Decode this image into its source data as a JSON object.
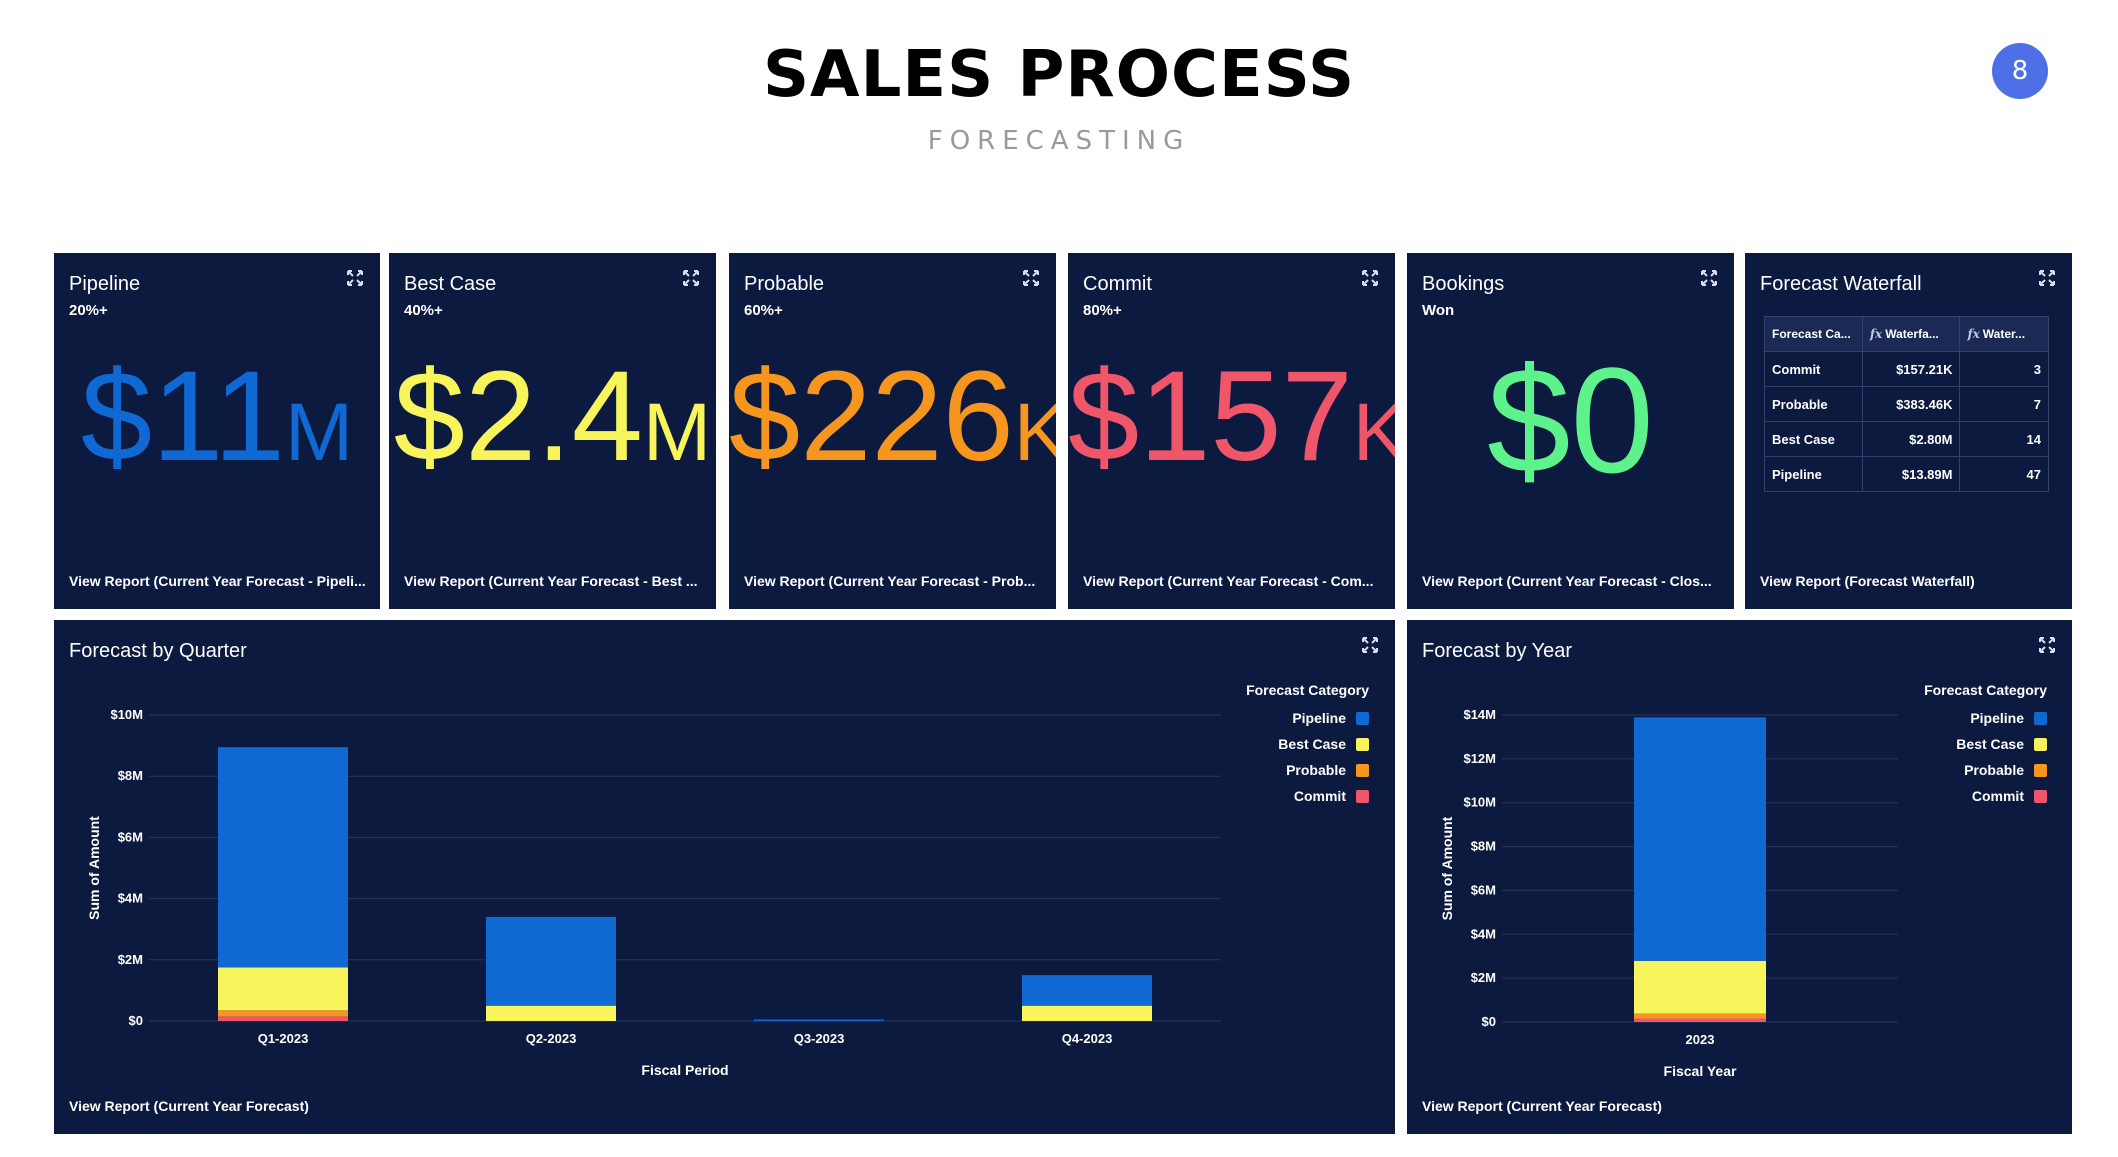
{
  "page": {
    "title": "SALES PROCESS",
    "subtitle": "FORECASTING",
    "page_number": "8"
  },
  "colors": {
    "pipeline": "#1068d2",
    "best_case": "#f8f45c",
    "probable": "#f6961e",
    "commit": "#f0566a",
    "bookings": "#5df28a",
    "card_bg": "#0d1a40"
  },
  "cards": [
    {
      "title": "Pipeline",
      "sub": "20%+",
      "value": "$11",
      "unit": "M",
      "color": "#1068d2",
      "link": "View Report (Current Year Forecast - Pipeli..."
    },
    {
      "title": "Best Case",
      "sub": "40%+",
      "value": "$2.4",
      "unit": "M",
      "color": "#f8f45c",
      "link": "View Report (Current Year Forecast - Best ..."
    },
    {
      "title": "Probable",
      "sub": "60%+",
      "value": "$226",
      "unit": "K",
      "color": "#f6961e",
      "link": "View Report (Current Year Forecast - Prob..."
    },
    {
      "title": "Commit",
      "sub": "80%+",
      "value": "$157",
      "unit": "K",
      "color": "#f0566a",
      "link": "View Report (Current Year Forecast - Com..."
    },
    {
      "title": "Bookings",
      "sub": "Won",
      "value": "$0",
      "unit": "",
      "color": "#5df28a",
      "link": "View Report (Current Year Forecast - Clos..."
    }
  ],
  "waterfall": {
    "title": "Forecast Waterfall",
    "headers": [
      "Forecast Ca...",
      "Waterfa...",
      "Water..."
    ],
    "rows": [
      {
        "cat": "Commit",
        "amount": "$157.21K",
        "count": "3"
      },
      {
        "cat": "Probable",
        "amount": "$383.46K",
        "count": "7"
      },
      {
        "cat": "Best Case",
        "amount": "$2.80M",
        "count": "14"
      },
      {
        "cat": "Pipeline",
        "amount": "$13.89M",
        "count": "47"
      }
    ],
    "link": "View Report (Forecast Waterfall)"
  },
  "legend": {
    "title": "Forecast Category",
    "items": [
      "Pipeline",
      "Best Case",
      "Probable",
      "Commit"
    ]
  },
  "quarter_chart": {
    "title": "Forecast by Quarter",
    "link": "View Report (Current Year Forecast)",
    "chart_data": {
      "type": "bar",
      "stacked": true,
      "categories": [
        "Q1-2023",
        "Q2-2023",
        "Q3-2023",
        "Q4-2023"
      ],
      "series": [
        {
          "name": "Commit",
          "values": [
            0.15,
            0,
            0,
            0
          ]
        },
        {
          "name": "Probable",
          "values": [
            0.2,
            0,
            0,
            0
          ]
        },
        {
          "name": "Best Case",
          "values": [
            1.4,
            0.5,
            0,
            0.5
          ]
        },
        {
          "name": "Pipeline",
          "values": [
            7.2,
            2.9,
            0.05,
            1.0
          ]
        }
      ],
      "xlabel": "Fiscal Period",
      "ylabel": "Sum of Amount",
      "ylim": [
        0,
        10
      ],
      "yticks": [
        "$0",
        "$2M",
        "$4M",
        "$6M",
        "$8M",
        "$10M"
      ],
      "ytick_values": [
        0,
        2,
        4,
        6,
        8,
        10
      ],
      "grid": true,
      "legend": "right"
    }
  },
  "year_chart": {
    "title": "Forecast by Year",
    "link": "View Report (Current Year Forecast)",
    "chart_data": {
      "type": "bar",
      "stacked": true,
      "categories": [
        "2023"
      ],
      "series": [
        {
          "name": "Commit",
          "values": [
            0.16
          ]
        },
        {
          "name": "Probable",
          "values": [
            0.23
          ]
        },
        {
          "name": "Best Case",
          "values": [
            2.4
          ]
        },
        {
          "name": "Pipeline",
          "values": [
            11.1
          ]
        }
      ],
      "xlabel": "Fiscal Year",
      "ylabel": "Sum of Amount",
      "ylim": [
        0,
        14
      ],
      "yticks": [
        "$0",
        "$2M",
        "$4M",
        "$6M",
        "$8M",
        "$10M",
        "$12M",
        "$14M"
      ],
      "ytick_values": [
        0,
        2,
        4,
        6,
        8,
        10,
        12,
        14
      ],
      "grid": true,
      "legend": "right"
    }
  }
}
